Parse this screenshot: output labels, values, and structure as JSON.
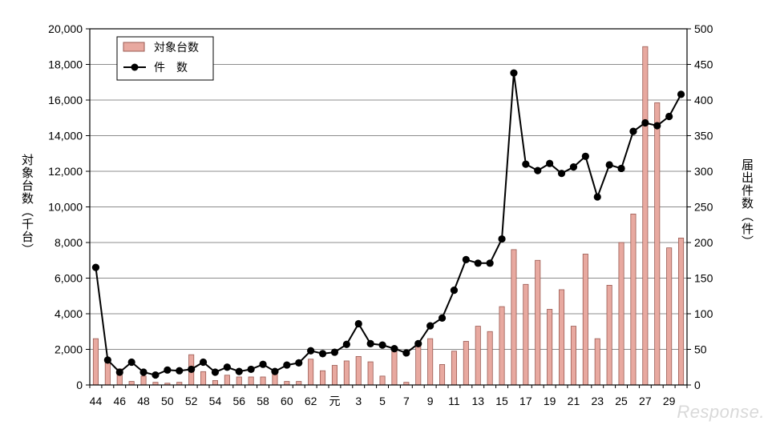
{
  "chart_data": {
    "type": "bar+line",
    "title": "",
    "xlabel": "",
    "ylabel_left": "対象台数（千台）",
    "ylabel_right": "届出件数（件）",
    "ylim_left": [
      0,
      20000
    ],
    "ylim_right": [
      0,
      500
    ],
    "yticks_left": [
      "0",
      "2,000",
      "4,000",
      "6,000",
      "8,000",
      "10,000",
      "12,000",
      "14,000",
      "16,000",
      "18,000",
      "20,000"
    ],
    "yticks_right": [
      "0",
      "50",
      "100",
      "150",
      "200",
      "250",
      "300",
      "350",
      "400",
      "450",
      "500"
    ],
    "grid": true,
    "legend_placement": "top-left",
    "x": [
      "44",
      "45",
      "46",
      "47",
      "48",
      "49",
      "50",
      "51",
      "52",
      "53",
      "54",
      "55",
      "56",
      "57",
      "58",
      "59",
      "60",
      "61",
      "62",
      "63",
      "元",
      "2",
      "3",
      "4",
      "5",
      "6",
      "7",
      "8",
      "9",
      "10",
      "11",
      "12",
      "13",
      "14",
      "15",
      "16",
      "17",
      "18",
      "19",
      "20",
      "21",
      "22",
      "23",
      "24",
      "25",
      "26",
      "27",
      "28",
      "29",
      "30"
    ],
    "x_tick_labels": [
      "44",
      "46",
      "48",
      "50",
      "52",
      "54",
      "56",
      "58",
      "60",
      "62",
      "元",
      "3",
      "5",
      "7",
      "9",
      "11",
      "13",
      "15",
      "17",
      "19",
      "21",
      "23",
      "25",
      "27",
      "29"
    ],
    "series": [
      {
        "name": "対象台数",
        "kind": "bar",
        "axis": "left",
        "color": "#e8a9a0",
        "values": [
          2600,
          1400,
          900,
          200,
          500,
          150,
          100,
          150,
          1700,
          750,
          250,
          550,
          450,
          450,
          450,
          600,
          200,
          200,
          1450,
          800,
          1100,
          1350,
          1600,
          1300,
          500,
          1900,
          150,
          2200,
          2600,
          1150,
          1900,
          2450,
          3300,
          3000,
          4400,
          7600,
          5650,
          7000,
          4250,
          5350,
          3300,
          7350,
          2600,
          5600,
          8000,
          9600,
          19000,
          15850,
          7700,
          8250
        ]
      },
      {
        "name": "件　数",
        "kind": "line",
        "axis": "right",
        "color": "#000000",
        "values": [
          165,
          35,
          18,
          32,
          18,
          14,
          21,
          20,
          22,
          32,
          18,
          25,
          19,
          22,
          29,
          19,
          28,
          31,
          48,
          44,
          46,
          57,
          86,
          58,
          56,
          51,
          45,
          58,
          83,
          94,
          133,
          176,
          171,
          171,
          205,
          438,
          310,
          301,
          311,
          297,
          306,
          321,
          264,
          309,
          304,
          356,
          368,
          364,
          377,
          408
        ]
      }
    ]
  },
  "watermark": "Response."
}
